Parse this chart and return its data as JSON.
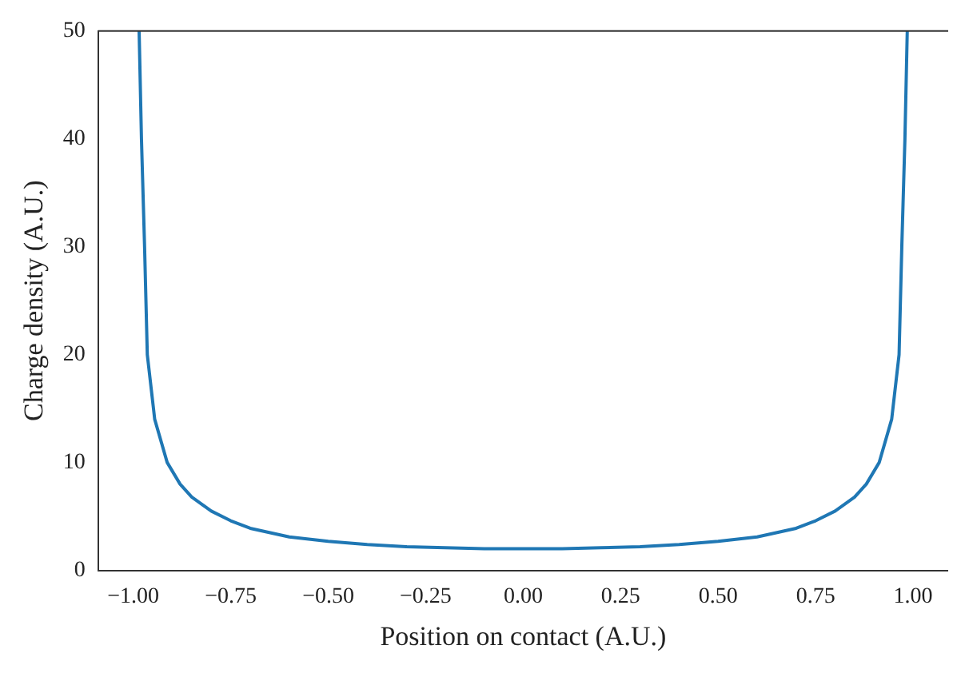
{
  "chart_data": {
    "type": "line",
    "xlabel": "Position on contact (A.U.)",
    "ylabel": "Charge density (A.U.)",
    "xlim": [
      -1.09,
      1.09
    ],
    "xticks": [
      {
        "value": -1,
        "label": "−1.00"
      },
      {
        "value": -0.75,
        "label": "−0.75"
      },
      {
        "value": -0.5,
        "label": "−0.50"
      },
      {
        "value": -0.25,
        "label": "−0.25"
      },
      {
        "value": 0,
        "label": "0.00"
      },
      {
        "value": 0.25,
        "label": "0.25"
      },
      {
        "value": 0.5,
        "label": "0.50"
      },
      {
        "value": 0.75,
        "label": "0.75"
      },
      {
        "value": 1,
        "label": "1.00"
      }
    ],
    "ylim": [
      0,
      50
    ],
    "yticks": [
      0,
      10,
      20,
      30,
      40,
      50
    ],
    "grid": false,
    "marker": "none",
    "line_style": "solid",
    "series": [
      {
        "color": "#1f77b4",
        "x": [
          -0.985,
          -0.979,
          -0.971,
          -0.964,
          -0.945,
          -0.913,
          -0.88,
          -0.85,
          -0.8,
          -0.75,
          -0.7,
          -0.6,
          -0.5,
          -0.4,
          -0.3,
          -0.2,
          -0.1,
          0,
          0.1,
          0.2,
          0.3,
          0.4,
          0.5,
          0.6,
          0.7,
          0.75,
          0.8,
          0.85,
          0.88,
          0.913,
          0.945,
          0.964,
          0.971,
          0.979,
          0.985
        ],
        "values": [
          50,
          40,
          30,
          20,
          14,
          10,
          8,
          6.8,
          5.5,
          4.6,
          3.9,
          3.1,
          2.7,
          2.4,
          2.2,
          2.1,
          2,
          2,
          2,
          2.1,
          2.2,
          2.4,
          2.7,
          3.1,
          3.9,
          4.6,
          5.5,
          6.8,
          8,
          10,
          14,
          20,
          30,
          40,
          50
        ]
      }
    ]
  }
}
